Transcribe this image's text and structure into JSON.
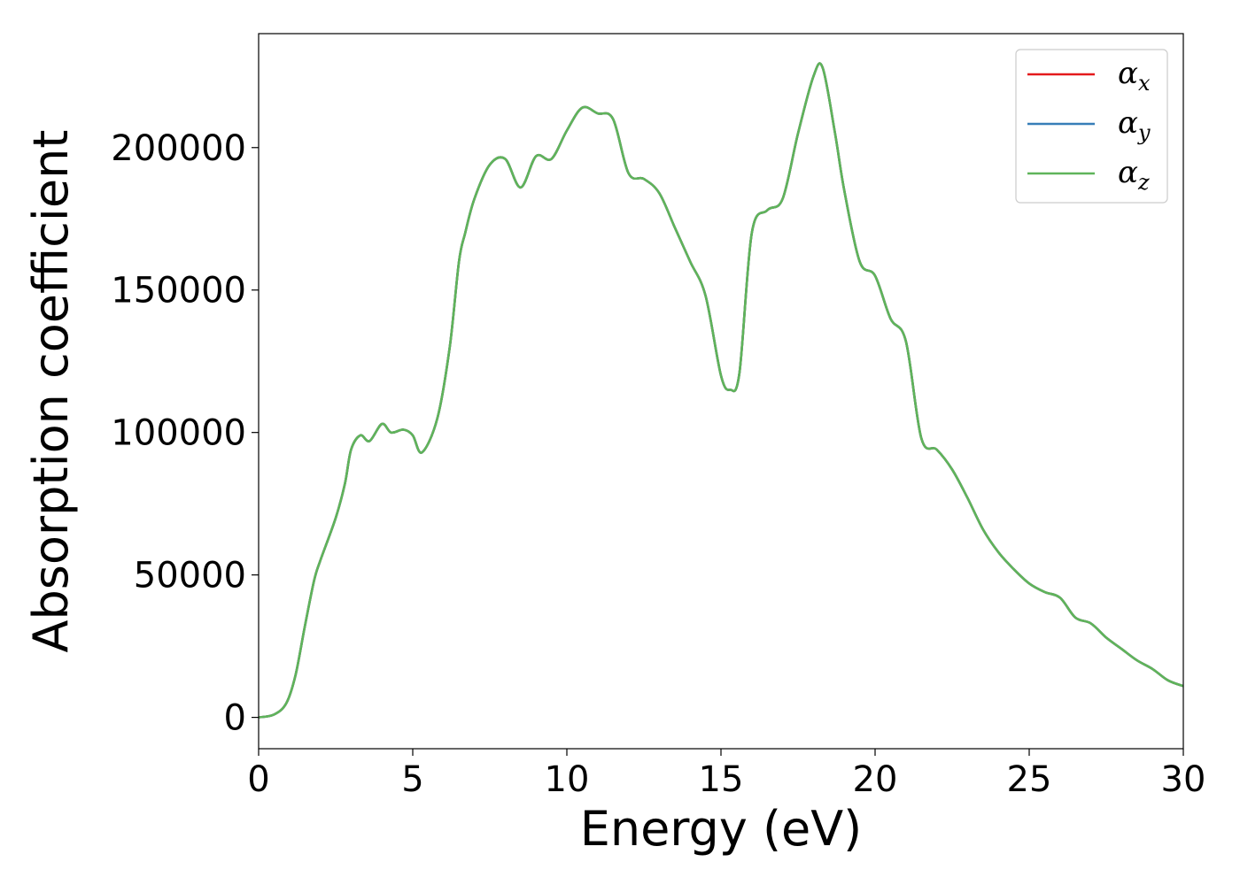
{
  "chart_data": {
    "type": "line",
    "xlabel": "Energy (eV)",
    "ylabel": "Absorption coefficient",
    "xlim": [
      0,
      30
    ],
    "ylim": [
      -11000,
      240000
    ],
    "xticks": [
      0,
      5,
      10,
      15,
      20,
      25,
      30
    ],
    "yticks": [
      0,
      50000,
      100000,
      150000,
      200000
    ],
    "grid": false,
    "legend_position": "top-right",
    "x": [
      0,
      0.5,
      0.9,
      1.2,
      1.5,
      1.8,
      2.0,
      2.5,
      2.8,
      3.0,
      3.3,
      3.6,
      4.0,
      4.3,
      4.7,
      5.0,
      5.3,
      5.8,
      6.2,
      6.5,
      6.7,
      7.0,
      7.5,
      8.0,
      8.5,
      9.0,
      9.5,
      10.0,
      10.5,
      11.0,
      11.5,
      12.0,
      12.5,
      13.0,
      13.5,
      14.0,
      14.5,
      15.0,
      15.3,
      15.6,
      16.0,
      16.5,
      17.0,
      17.5,
      18.0,
      18.3,
      18.7,
      19.0,
      19.5,
      20.0,
      20.5,
      21.0,
      21.5,
      22.0,
      22.5,
      23.0,
      23.5,
      24.0,
      24.5,
      25.0,
      25.5,
      26.0,
      26.5,
      27.0,
      27.5,
      28.0,
      28.5,
      29.0,
      29.5,
      30.0
    ],
    "series": [
      {
        "name": "α_x",
        "symbol": "α",
        "subscript": "x",
        "color": "#e41a1c",
        "values": [
          0,
          1000,
          5000,
          15000,
          32000,
          48000,
          55000,
          70000,
          82000,
          94000,
          99000,
          97000,
          103000,
          100000,
          101000,
          99000,
          93000,
          105000,
          130000,
          160000,
          170000,
          182000,
          194000,
          196000,
          186000,
          197000,
          196000,
          206000,
          214000,
          212000,
          210000,
          191000,
          189000,
          184000,
          172000,
          160000,
          148000,
          120000,
          115000,
          121000,
          170000,
          178000,
          182000,
          205000,
          225000,
          228000,
          205000,
          185000,
          160000,
          155000,
          140000,
          132000,
          98000,
          94000,
          87000,
          77000,
          66000,
          58000,
          52000,
          47000,
          44000,
          42000,
          35000,
          33000,
          28000,
          24000,
          20000,
          17000,
          13000,
          11000
        ]
      },
      {
        "name": "α_y",
        "symbol": "α",
        "subscript": "y",
        "color": "#377eb8",
        "values": [
          0,
          1000,
          5000,
          15000,
          32000,
          48000,
          55000,
          70000,
          82000,
          94000,
          99000,
          97000,
          103000,
          100000,
          101000,
          99000,
          93000,
          105000,
          130000,
          160000,
          170000,
          182000,
          194000,
          196000,
          186000,
          197000,
          196000,
          206000,
          214000,
          212000,
          210000,
          191000,
          189000,
          184000,
          172000,
          160000,
          148000,
          120000,
          115000,
          121000,
          170000,
          178000,
          182000,
          205000,
          225000,
          228000,
          205000,
          185000,
          160000,
          155000,
          140000,
          132000,
          98000,
          94000,
          87000,
          77000,
          66000,
          58000,
          52000,
          47000,
          44000,
          42000,
          35000,
          33000,
          28000,
          24000,
          20000,
          17000,
          13000,
          11000
        ]
      },
      {
        "name": "α_z",
        "symbol": "α",
        "subscript": "z",
        "color": "#5fb45a",
        "values": [
          0,
          1000,
          5000,
          15000,
          32000,
          48000,
          55000,
          70000,
          82000,
          94000,
          99000,
          97000,
          103000,
          100000,
          101000,
          99000,
          93000,
          105000,
          130000,
          160000,
          170000,
          182000,
          194000,
          196000,
          186000,
          197000,
          196000,
          206000,
          214000,
          212000,
          210000,
          191000,
          189000,
          184000,
          172000,
          160000,
          148000,
          120000,
          115000,
          121000,
          170000,
          178000,
          182000,
          205000,
          225000,
          228000,
          205000,
          185000,
          160000,
          155000,
          140000,
          132000,
          98000,
          94000,
          87000,
          77000,
          66000,
          58000,
          52000,
          47000,
          44000,
          42000,
          35000,
          33000,
          28000,
          24000,
          20000,
          17000,
          13000,
          11000
        ]
      }
    ]
  }
}
